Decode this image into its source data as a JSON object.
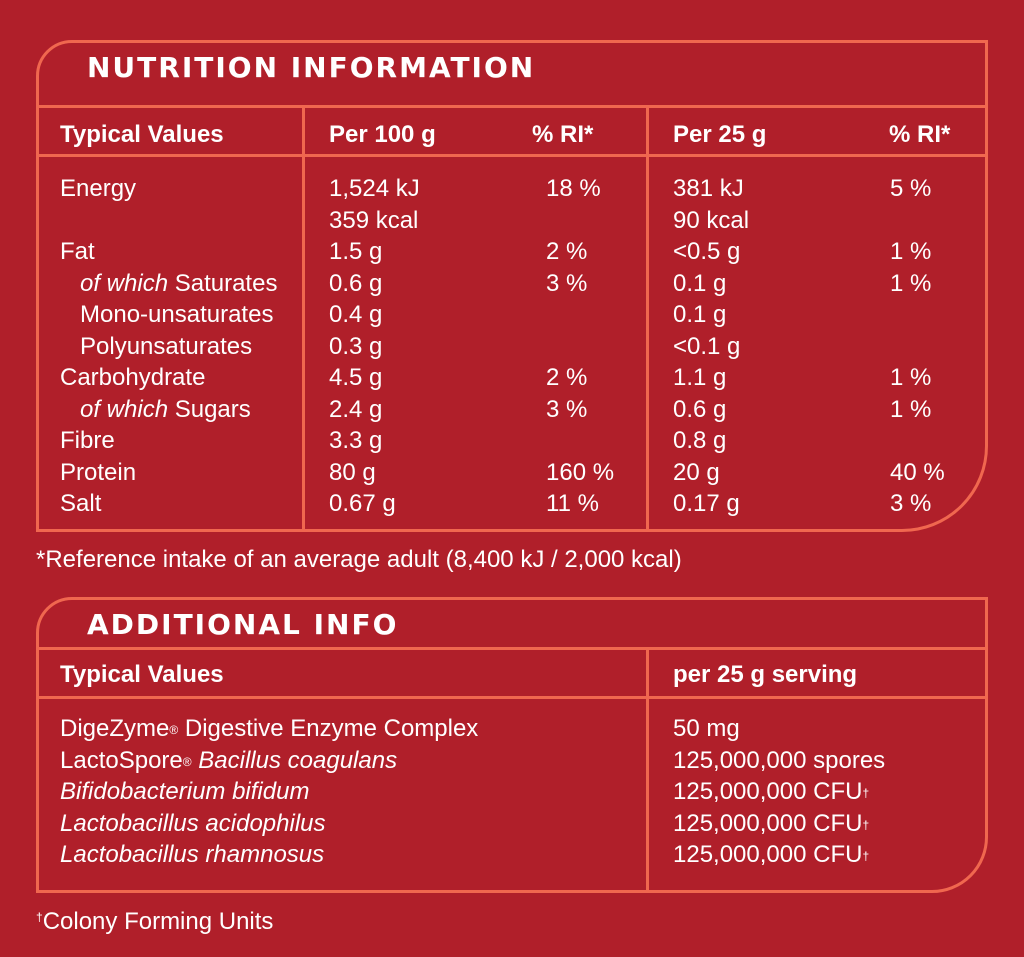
{
  "nutrition": {
    "title": "NUTRITION INFORMATION",
    "headers": {
      "typical": "Typical Values",
      "per100": "Per 100 g",
      "ri100": "% RI*",
      "per25": "Per 25 g",
      "ri25": "% RI*"
    },
    "rows": [
      {
        "label_pre": "",
        "label": "Energy",
        "indent": false,
        "per100": "1,524 kJ",
        "ri100": "18 %",
        "per25": "381 kJ",
        "ri25": "5 %"
      },
      {
        "label_pre": "",
        "label": "",
        "indent": false,
        "per100": "359 kcal",
        "ri100": "",
        "per25": "90 kcal",
        "ri25": ""
      },
      {
        "label_pre": "",
        "label": "Fat",
        "indent": false,
        "per100": "1.5 g",
        "ri100": "2 %",
        "per25": "<0.5 g",
        "ri25": "1 %"
      },
      {
        "label_pre": "of which",
        "label": " Saturates",
        "indent": true,
        "per100": "0.6 g",
        "ri100": "3 %",
        "per25": "0.1 g",
        "ri25": "1 %"
      },
      {
        "label_pre": "",
        "label": "Mono-unsaturates",
        "indent": true,
        "per100": "0.4 g",
        "ri100": "",
        "per25": "0.1 g",
        "ri25": ""
      },
      {
        "label_pre": "",
        "label": "Polyunsaturates",
        "indent": true,
        "per100": "0.3 g",
        "ri100": "",
        "per25": "<0.1 g",
        "ri25": ""
      },
      {
        "label_pre": "",
        "label": "Carbohydrate",
        "indent": false,
        "per100": "4.5 g",
        "ri100": "2 %",
        "per25": "1.1 g",
        "ri25": "1 %"
      },
      {
        "label_pre": "of which",
        "label": " Sugars",
        "indent": true,
        "per100": "2.4 g",
        "ri100": "3 %",
        "per25": "0.6 g",
        "ri25": "1 %"
      },
      {
        "label_pre": "",
        "label": "Fibre",
        "indent": false,
        "per100": "3.3 g",
        "ri100": "",
        "per25": "0.8 g",
        "ri25": ""
      },
      {
        "label_pre": "",
        "label": "Protein",
        "indent": false,
        "per100": "80 g",
        "ri100": "160 %",
        "per25": "20 g",
        "ri25": "40 %"
      },
      {
        "label_pre": "",
        "label": "Salt",
        "indent": false,
        "per100": "0.67 g",
        "ri100": "11 %",
        "per25": "0.17 g",
        "ri25": "3 %"
      }
    ],
    "footnote": "*Reference intake of an average adult (8,400 kJ / 2,000 kcal)"
  },
  "additional": {
    "title": "ADDITIONAL INFO",
    "headers": {
      "typical": "Typical Values",
      "serving": "per 25 g serving"
    },
    "rows": [
      {
        "name": "DigeZyme",
        "mark": "®",
        "rest": " Digestive Enzyme Complex",
        "rest_italic": false,
        "name_italic": false,
        "value": "50 mg",
        "value_mark": ""
      },
      {
        "name": "LactoSpore",
        "mark": "®",
        "rest": " Bacillus coagulans",
        "rest_italic": true,
        "name_italic": false,
        "value": "125,000,000 spores",
        "value_mark": ""
      },
      {
        "name": "Bifidobacterium bifidum",
        "mark": "",
        "rest": "",
        "rest_italic": false,
        "name_italic": true,
        "value": "125,000,000 CFU",
        "value_mark": "†"
      },
      {
        "name": "Lactobacillus acidophilus",
        "mark": "",
        "rest": "",
        "rest_italic": false,
        "name_italic": true,
        "value": "125,000,000 CFU",
        "value_mark": "†"
      },
      {
        "name": "Lactobacillus rhamnosus",
        "mark": "",
        "rest": "",
        "rest_italic": false,
        "name_italic": true,
        "value": "125,000,000 CFU",
        "value_mark": "†"
      }
    ],
    "footnote_mark": "†",
    "footnote": "Colony Forming Units"
  },
  "colors": {
    "background": "#b01f2a",
    "border": "#f0674f",
    "text": "#ffffff"
  }
}
